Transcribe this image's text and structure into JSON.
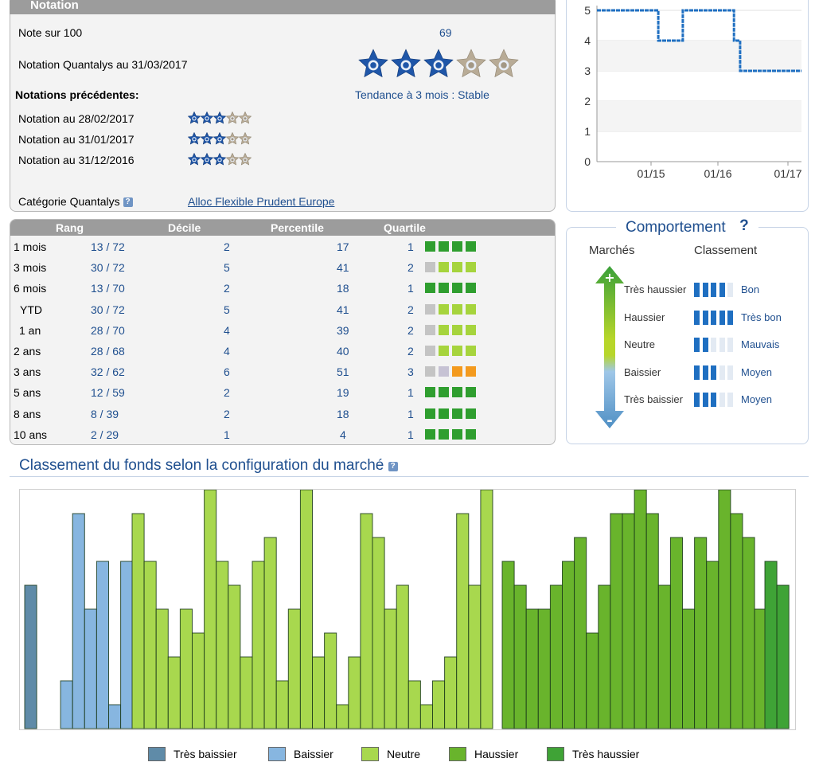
{
  "notation": {
    "header": "Notation",
    "note_label": "Note sur 100",
    "note_value": "69",
    "current_label": "Notation Quantalys au 31/03/2017",
    "current_stars": 3,
    "previous_title": "Notations précédentes:",
    "trend_label": "Tendance à 3 mois : Stable",
    "previous": [
      {
        "label": "Notation au 28/02/2017",
        "stars": 3
      },
      {
        "label": "Notation au 31/01/2017",
        "stars": 3
      },
      {
        "label": "Notation au 31/12/2016",
        "stars": 3
      }
    ],
    "category_label": "Catégorie Quantalys",
    "category_value": "Alloc Flexible Prudent Europe"
  },
  "ranks": {
    "headers": {
      "rang": "Rang",
      "decile": "Décile",
      "percentile": "Percentile",
      "quartile": "Quartile"
    },
    "rows": [
      {
        "period": "1 mois",
        "rang": "13 / 72",
        "decile": "2",
        "percentile": "17",
        "quartile": "1"
      },
      {
        "period": "3 mois",
        "rang": "30 / 72",
        "decile": "5",
        "percentile": "41",
        "quartile": "2"
      },
      {
        "period": "6 mois",
        "rang": "13 / 70",
        "decile": "2",
        "percentile": "18",
        "quartile": "1"
      },
      {
        "period": "YTD",
        "rang": "30 / 72",
        "decile": "5",
        "percentile": "41",
        "quartile": "2"
      },
      {
        "period": "1 an",
        "rang": "28 / 70",
        "decile": "4",
        "percentile": "39",
        "quartile": "2"
      },
      {
        "period": "2 ans",
        "rang": "28 / 68",
        "decile": "4",
        "percentile": "40",
        "quartile": "2"
      },
      {
        "period": "3 ans",
        "rang": "32 / 62",
        "decile": "6",
        "percentile": "51",
        "quartile": "3"
      },
      {
        "period": "5 ans",
        "rang": "12 / 59",
        "decile": "2",
        "percentile": "19",
        "quartile": "1"
      },
      {
        "period": "8 ans",
        "rang": "8 / 39",
        "decile": "2",
        "percentile": "18",
        "quartile": "1"
      },
      {
        "period": "10 ans",
        "rang": "2 / 29",
        "decile": "1",
        "percentile": "4",
        "quartile": "1"
      }
    ],
    "colors": {
      "q1": "#2f9e2f",
      "q2": "#a6d43d",
      "q3": "#f39a1e",
      "gray": "#c4c4c4",
      "q3gray": "#c6c2d4"
    }
  },
  "line_chart": {
    "y_ticks": [
      "5",
      "4",
      "3",
      "2",
      "1",
      "0"
    ],
    "x_ticks": [
      "01/15",
      "01/16",
      "01/17"
    ],
    "color": "#1f6fc1",
    "steps": [
      {
        "from": 0.0,
        "to": 0.3,
        "value": 5
      },
      {
        "from": 0.3,
        "to": 0.42,
        "value": 4
      },
      {
        "from": 0.42,
        "to": 0.67,
        "value": 5
      },
      {
        "from": 0.67,
        "to": 0.7,
        "value": 4
      },
      {
        "from": 0.7,
        "to": 1.0,
        "value": 3
      }
    ]
  },
  "comportement": {
    "title": "Comportement",
    "col_marches": "Marchés",
    "col_classement": "Classement",
    "rows": [
      {
        "market": "Très haussier",
        "level": 4,
        "rating": "Bon"
      },
      {
        "market": "Haussier",
        "level": 5,
        "rating": "Très bon"
      },
      {
        "market": "Neutre",
        "level": 2,
        "rating": "Mauvais"
      },
      {
        "market": "Baissier",
        "level": 3,
        "rating": "Moyen"
      },
      {
        "market": "Très baissier",
        "level": 3,
        "rating": "Moyen"
      }
    ],
    "segments_total": 5
  },
  "bar_chart": {
    "title": "Classement du fonds selon la configuration du marché",
    "legend": [
      {
        "label": "Très baissier",
        "color": "#5f8ba8"
      },
      {
        "label": "Baissier",
        "color": "#87b6e0"
      },
      {
        "label": "Neutre",
        "color": "#a8d84e"
      },
      {
        "label": "Haussier",
        "color": "#69b42c"
      },
      {
        "label": "Très haussier",
        "color": "#3fa336"
      }
    ]
  },
  "chart_data": {
    "type": "bar",
    "title": "Classement du fonds selon la configuration du marché",
    "ylim": [
      0,
      10
    ],
    "series": [
      {
        "name": "Très baissier",
        "values": [
          6
        ]
      },
      {
        "name": "Baissier",
        "values": [
          0,
          2,
          9,
          5,
          7,
          1,
          7
        ]
      },
      {
        "name": "Neutre",
        "values": [
          9,
          7,
          5,
          3,
          5,
          4,
          10,
          7,
          6,
          3,
          7,
          8,
          2,
          5,
          10,
          3,
          4,
          1,
          3,
          9,
          8,
          5,
          6,
          2,
          1,
          2,
          3,
          9,
          6,
          10
        ]
      },
      {
        "name": "Haussier",
        "values": [
          7,
          6,
          5,
          5,
          6,
          7,
          8,
          4,
          6,
          9,
          9,
          10,
          9,
          6,
          8,
          5,
          8,
          7,
          10,
          9,
          8,
          5
        ]
      },
      {
        "name": "Très haussier",
        "values": [
          7,
          6
        ]
      }
    ]
  }
}
